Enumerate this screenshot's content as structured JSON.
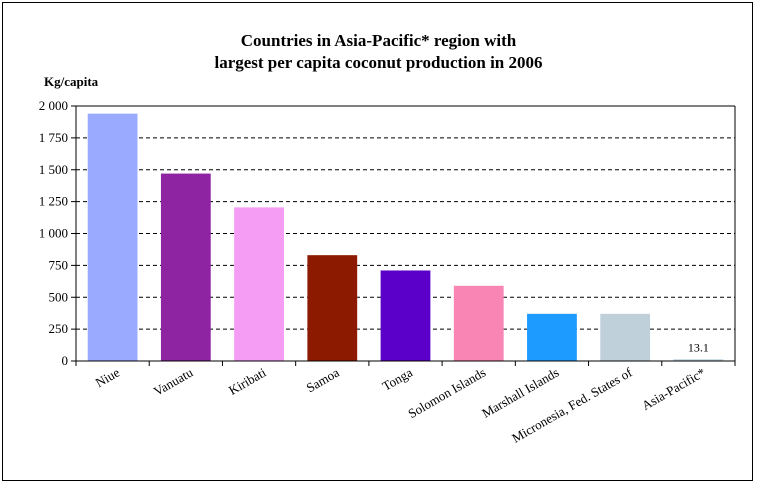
{
  "chart_data": {
    "type": "bar",
    "title": [
      "Countries in Asia-Pacific* region with",
      "largest per capita coconut production in 2006"
    ],
    "ylabel": "Kg/capita",
    "xlabel": "",
    "ylim": [
      0,
      2000
    ],
    "yticks": [
      0,
      250,
      500,
      750,
      1000,
      1250,
      1500,
      1750,
      2000
    ],
    "ytick_labels": [
      "0",
      "250",
      "500",
      "750",
      "1 000",
      "1 250",
      "1 500",
      "1 750",
      "2 000"
    ],
    "grid": "horizontal-dashed",
    "categories": [
      "Niue",
      "Vanuatu",
      "Kiribati",
      "Samoa",
      "Tonga",
      "Solomon Islands",
      "Marshall Islands",
      "Micronesia, Fed. States of",
      "Asia-Pacific*"
    ],
    "values": [
      1940,
      1470,
      1205,
      830,
      710,
      590,
      370,
      370,
      13.1
    ],
    "colors": [
      "#99aaff",
      "#8e24a2",
      "#f59cf5",
      "#8b1a00",
      "#5b00c8",
      "#f985b4",
      "#1e9bff",
      "#c0d0da",
      "#b8d0e0"
    ],
    "data_labels": [
      null,
      null,
      null,
      null,
      null,
      null,
      null,
      null,
      "13.1"
    ]
  }
}
